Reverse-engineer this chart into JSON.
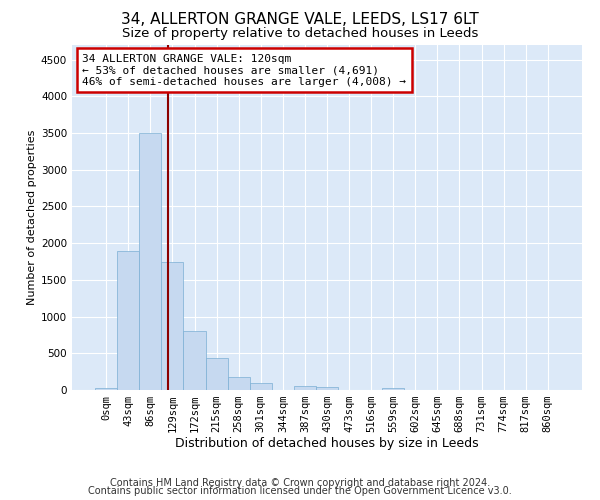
{
  "title1": "34, ALLERTON GRANGE VALE, LEEDS, LS17 6LT",
  "title2": "Size of property relative to detached houses in Leeds",
  "xlabel": "Distribution of detached houses by size in Leeds",
  "ylabel": "Number of detached properties",
  "categories": [
    "0sqm",
    "43sqm",
    "86sqm",
    "129sqm",
    "172sqm",
    "215sqm",
    "258sqm",
    "301sqm",
    "344sqm",
    "387sqm",
    "430sqm",
    "473sqm",
    "516sqm",
    "559sqm",
    "602sqm",
    "645sqm",
    "688sqm",
    "731sqm",
    "774sqm",
    "817sqm",
    "860sqm"
  ],
  "bar_heights": [
    30,
    1900,
    3500,
    1750,
    800,
    430,
    175,
    100,
    0,
    55,
    40,
    0,
    0,
    30,
    0,
    0,
    0,
    0,
    0,
    0,
    0
  ],
  "bar_color": "#c6d9f0",
  "bar_edge_color": "#7bafd4",
  "bar_width": 1.0,
  "vline_x": 2.79,
  "vline_color": "#8b0000",
  "ylim": [
    0,
    4700
  ],
  "yticks": [
    0,
    500,
    1000,
    1500,
    2000,
    2500,
    3000,
    3500,
    4000,
    4500
  ],
  "annotation_title": "34 ALLERTON GRANGE VALE: 120sqm",
  "annotation_line1": "← 53% of detached houses are smaller (4,691)",
  "annotation_line2": "46% of semi-detached houses are larger (4,008) →",
  "annotation_box_color": "#cc0000",
  "footnote1": "Contains HM Land Registry data © Crown copyright and database right 2024.",
  "footnote2": "Contains public sector information licensed under the Open Government Licence v3.0.",
  "plot_bg_color": "#dce9f8",
  "grid_color": "#ffffff",
  "title1_fontsize": 11,
  "title2_fontsize": 9.5,
  "xlabel_fontsize": 9,
  "ylabel_fontsize": 8,
  "tick_fontsize": 7.5,
  "footnote_fontsize": 7
}
